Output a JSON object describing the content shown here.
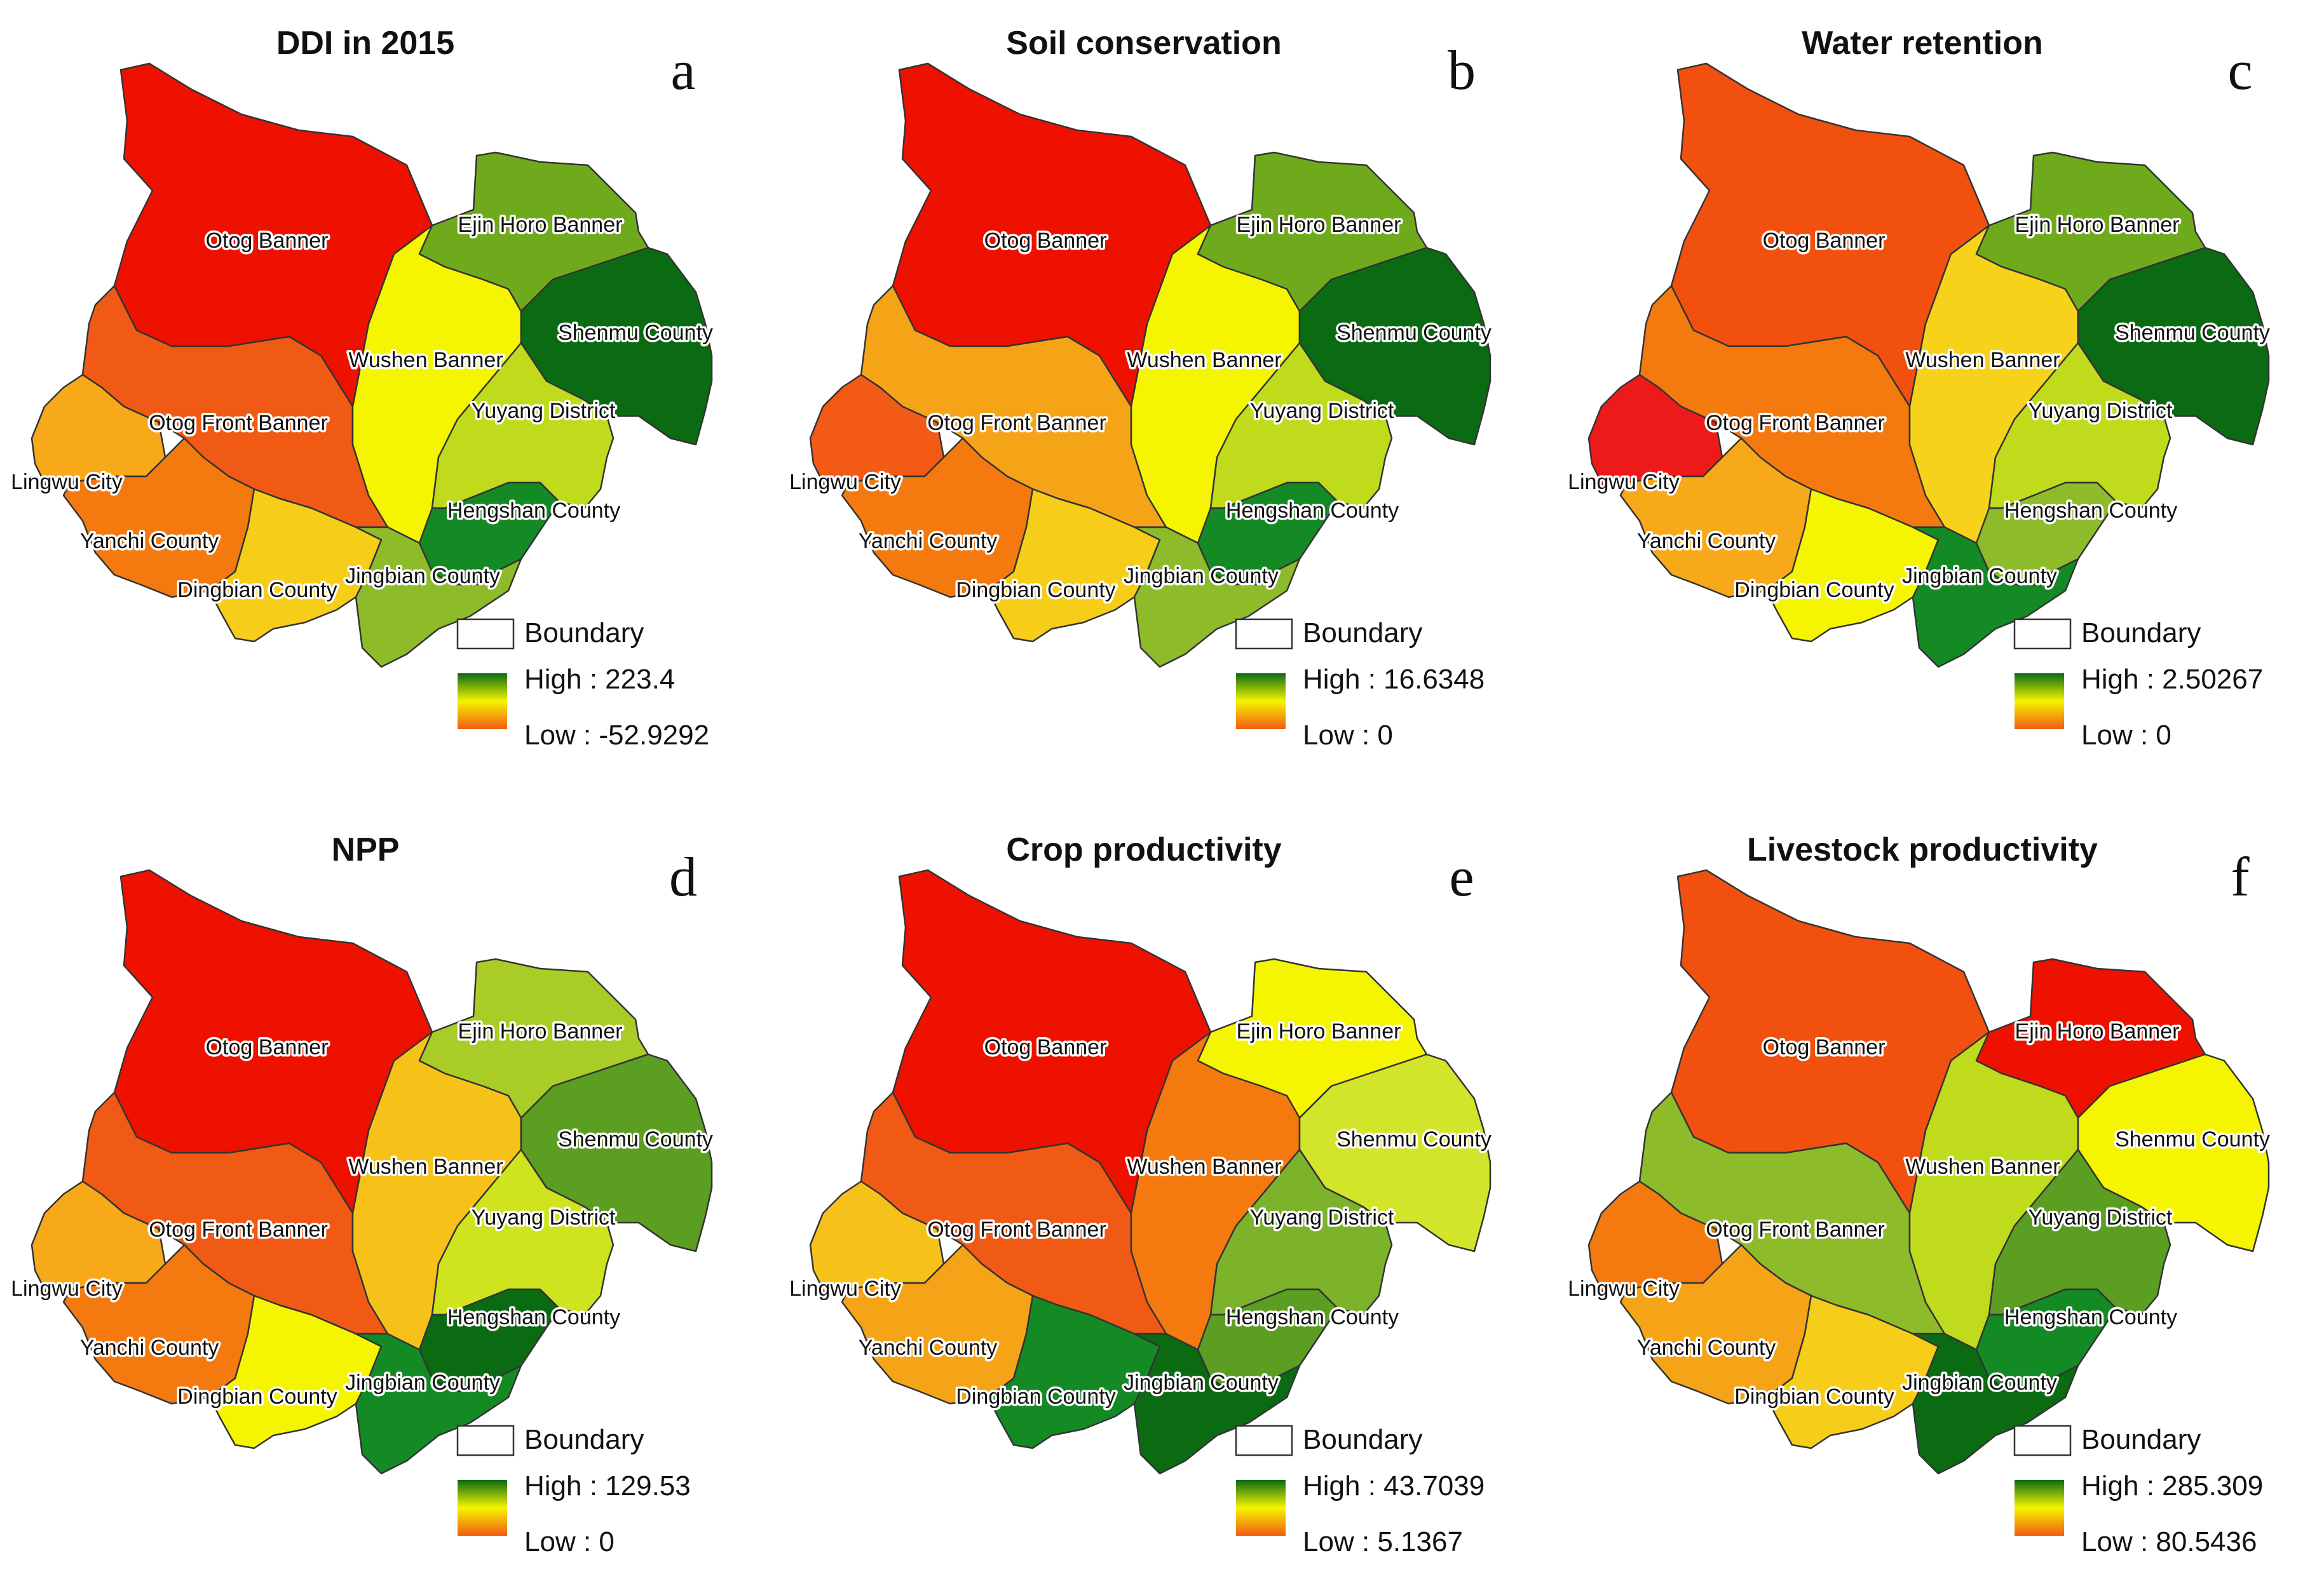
{
  "figure": {
    "panels": [
      {
        "letter": "a",
        "title": "DDI in 2015",
        "colors": {
          "otog": "#EE1100",
          "wushen": "#F6F500",
          "ejin": "#6FAA1C",
          "shenmu": "#0B6B12",
          "otogfront": "#F15A14",
          "yuyang": "#BFDB1C",
          "lingwu": "#F7A919",
          "yanchi": "#F47A10",
          "dingbian": "#F6CD18",
          "hengshan": "#138A24",
          "jingbian": "#8DBB2A"
        },
        "legend": {
          "boundary": "Boundary",
          "high": "High : 223.4",
          "low": "Low : -52.9292"
        }
      },
      {
        "letter": "b",
        "title": "Soil conservation",
        "colors": {
          "otog": "#EE1100",
          "wushen": "#F6F500",
          "ejin": "#6FAA1C",
          "shenmu": "#0B6B12",
          "otogfront": "#F5A418",
          "yuyang": "#BFDB1C",
          "lingwu": "#F25A16",
          "yanchi": "#F47A10",
          "dingbian": "#F6CD18",
          "hengshan": "#138A24",
          "jingbian": "#8DBB2A"
        },
        "legend": {
          "boundary": "Boundary",
          "high": "High : 16.6348",
          "low": "Low : 0"
        }
      },
      {
        "letter": "c",
        "title": "Water retention",
        "colors": {
          "otog": "#F1500F",
          "wushen": "#F6D31A",
          "ejin": "#6FAA1C",
          "shenmu": "#0B6B12",
          "otogfront": "#F47A10",
          "yuyang": "#BFDB1C",
          "lingwu": "#EE1A1A",
          "yanchi": "#F7A919",
          "dingbian": "#F6F500",
          "hengshan": "#8DBB2A",
          "jingbian": "#138A24"
        },
        "legend": {
          "boundary": "Boundary",
          "high": "High : 2.50267",
          "low": "Low : 0"
        }
      },
      {
        "letter": "d",
        "title": "NPP",
        "colors": {
          "otog": "#EE1100",
          "wushen": "#F6C21A",
          "ejin": "#A9CC26",
          "shenmu": "#5B9E22",
          "otogfront": "#F15A14",
          "yuyang": "#CFE31E",
          "lingwu": "#F7A919",
          "yanchi": "#F47A10",
          "dingbian": "#F6F500",
          "hengshan": "#0B6B12",
          "jingbian": "#138A24"
        },
        "legend": {
          "boundary": "Boundary",
          "high": "High : 129.53",
          "low": "Low : 0"
        }
      },
      {
        "letter": "e",
        "title": "Crop productivity",
        "colors": {
          "otog": "#EE1100",
          "wushen": "#F47A10",
          "ejin": "#F6F500",
          "shenmu": "#D2E52A",
          "otogfront": "#F15A14",
          "yuyang": "#7CB32A",
          "lingwu": "#F6C21A",
          "yanchi": "#F5A418",
          "dingbian": "#138A24",
          "hengshan": "#5B9E22",
          "jingbian": "#0B6B12"
        },
        "legend": {
          "boundary": "Boundary",
          "high": "High : 43.7039",
          "low": "Low : 5.1367"
        }
      },
      {
        "letter": "f",
        "title": "Livestock productivity",
        "colors": {
          "otog": "#F1500F",
          "wushen": "#BFDB1C",
          "ejin": "#EE1100",
          "shenmu": "#F6F500",
          "otogfront": "#8DBB2A",
          "yuyang": "#5B9E22",
          "lingwu": "#F47A10",
          "yanchi": "#F5A418",
          "dingbian": "#F6CD18",
          "hengshan": "#138A24",
          "jingbian": "#0B6B12"
        },
        "legend": {
          "boundary": "Boundary",
          "high": "High : 285.309",
          "low": "Low : 80.5436"
        }
      }
    ],
    "region_labels": {
      "otog": "Otog Banner",
      "wushen": "Wushen Banner",
      "ejin": "Ejin Horo Banner",
      "shenmu": "Shenmu County",
      "otogfront": "Otog Front Banner",
      "yuyang": "Yuyang District",
      "lingwu": "Lingwu City",
      "yanchi": "Yanchi County",
      "dingbian": "Dingbian County",
      "hengshan": "Hengshan County",
      "jingbian": "Jingbian County"
    },
    "gradient_colors": [
      "#0B6B12",
      "#F6F500",
      "#F15A14"
    ]
  }
}
